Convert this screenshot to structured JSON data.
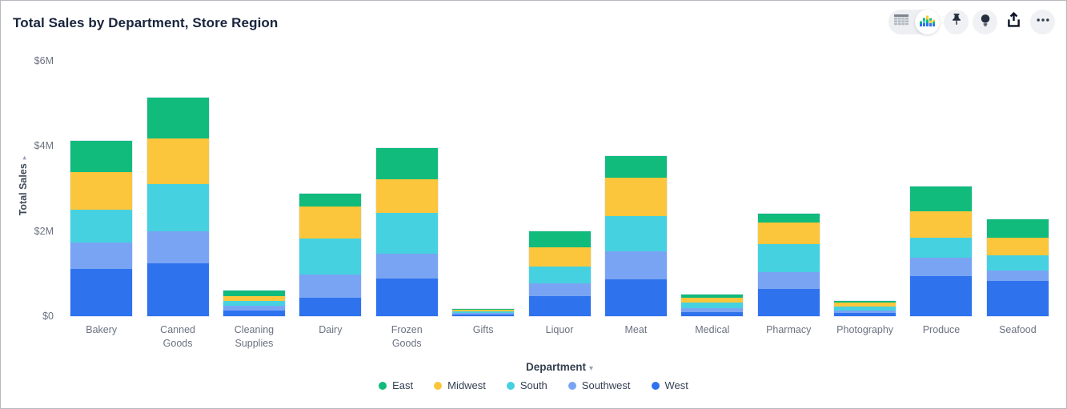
{
  "header": {
    "title": "Total Sales by Department, Store Region"
  },
  "toolbar": {
    "buttons": [
      "table-view-toggle",
      "chart-view-toggle",
      "pin",
      "insights-bulb",
      "share-export",
      "more-options"
    ],
    "selected_view": "chart"
  },
  "chart_data": {
    "type": "bar",
    "stacked": true,
    "title": "Total Sales by Department, Store Region",
    "xlabel": "Department",
    "ylabel": "Total Sales",
    "legend_position": "bottom",
    "grid": false,
    "ylim": [
      0,
      6
    ],
    "y_unit": "$M",
    "yticks": [
      {
        "label": "$0",
        "value": 0
      },
      {
        "label": "$2M",
        "value": 2
      },
      {
        "label": "$4M",
        "value": 4
      },
      {
        "label": "$6M",
        "value": 6
      }
    ],
    "categories": [
      "Bakery",
      "Canned Goods",
      "Cleaning Supplies",
      "Dairy",
      "Frozen Goods",
      "Gifts",
      "Liquor",
      "Meat",
      "Medical",
      "Pharmacy",
      "Photography",
      "Produce",
      "Seafood"
    ],
    "series": [
      {
        "name": "East",
        "color": "#10bb7b",
        "values": [
          0.74,
          0.96,
          0.12,
          0.3,
          0.74,
          0.02,
          0.38,
          0.5,
          0.08,
          0.2,
          0.03,
          0.58,
          0.44
        ]
      },
      {
        "name": "Midwest",
        "color": "#fbc63b",
        "values": [
          0.88,
          1.08,
          0.12,
          0.76,
          0.8,
          0.04,
          0.46,
          0.9,
          0.11,
          0.5,
          0.1,
          0.62,
          0.4
        ]
      },
      {
        "name": "South",
        "color": "#46d1e0",
        "values": [
          0.76,
          1.1,
          0.12,
          0.84,
          0.96,
          0.04,
          0.38,
          0.84,
          0.13,
          0.66,
          0.1,
          0.46,
          0.36
        ]
      },
      {
        "name": "Southwest",
        "color": "#79a4f3",
        "values": [
          0.62,
          0.76,
          0.1,
          0.54,
          0.58,
          0.04,
          0.3,
          0.66,
          0.09,
          0.4,
          0.06,
          0.44,
          0.26
        ]
      },
      {
        "name": "West",
        "color": "#2e72ee",
        "values": [
          1.12,
          1.24,
          0.14,
          0.44,
          0.88,
          0.04,
          0.48,
          0.86,
          0.1,
          0.64,
          0.07,
          0.94,
          0.82
        ]
      }
    ],
    "stack_order_bottom_to_top": [
      "West",
      "Southwest",
      "South",
      "Midwest",
      "East"
    ]
  }
}
